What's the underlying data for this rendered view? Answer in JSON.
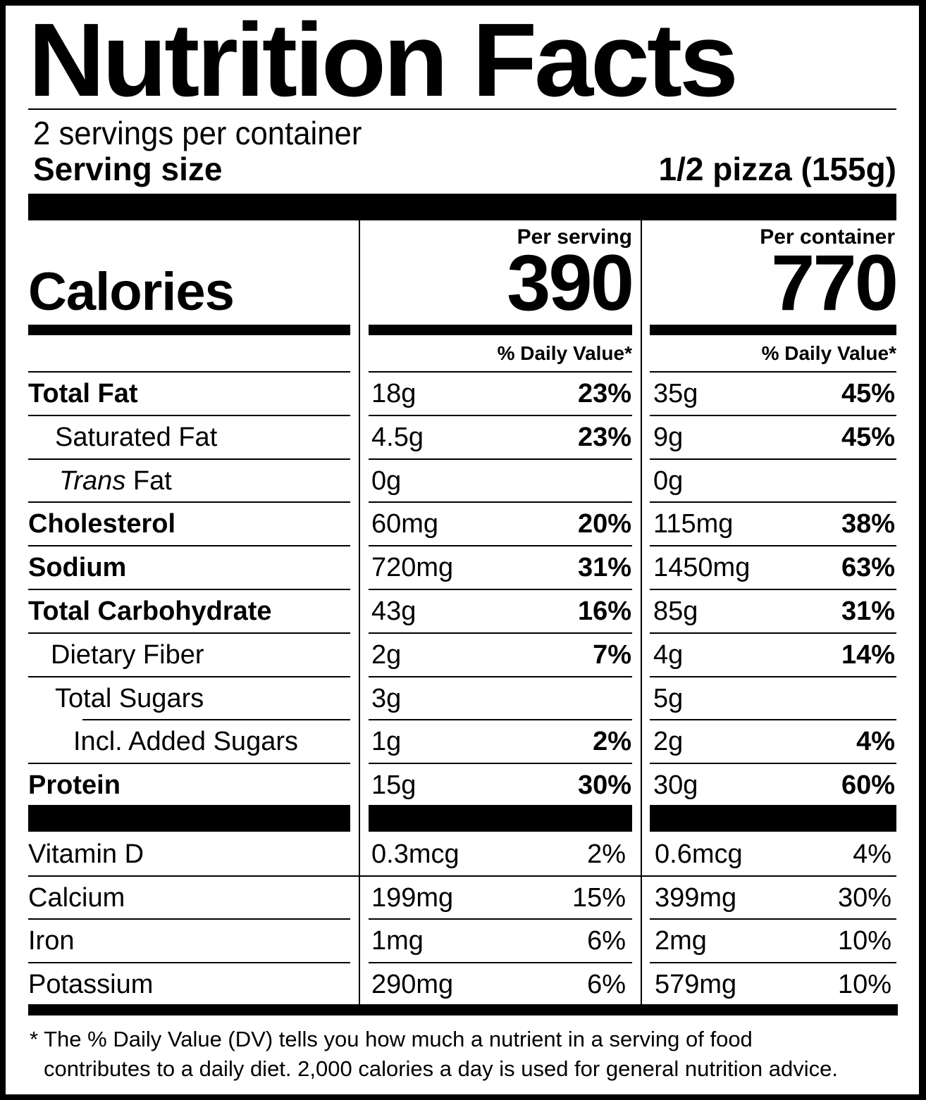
{
  "label": {
    "title": "Nutrition Facts",
    "servings_per_container": "2 servings per container",
    "serving_size_label": "Serving size",
    "serving_size_value": "1/2 pizza (155g)",
    "calories_label": "Calories",
    "columns": [
      {
        "header": "Per serving",
        "calories": "390",
        "dv_header": "% Daily Value*"
      },
      {
        "header": "Per container",
        "calories": "770",
        "dv_header": "% Daily Value*"
      }
    ],
    "nutrients": [
      {
        "name": "Total Fat",
        "bold": true,
        "indent": 0,
        "serving": {
          "amount": "18g",
          "dv": "23%"
        },
        "container": {
          "amount": "35g",
          "dv": "45%"
        }
      },
      {
        "name": "Saturated Fat",
        "bold": false,
        "indent": 1,
        "serving": {
          "amount": "4.5g",
          "dv": "23%"
        },
        "container": {
          "amount": "9g",
          "dv": "45%"
        }
      },
      {
        "name_italic": "Trans",
        "name": " Fat",
        "bold": false,
        "indent": 1,
        "serving": {
          "amount": "0g",
          "dv": ""
        },
        "container": {
          "amount": "0g",
          "dv": ""
        }
      },
      {
        "name": "Cholesterol",
        "bold": true,
        "indent": 0,
        "serving": {
          "amount": "60mg",
          "dv": "20%"
        },
        "container": {
          "amount": "115mg",
          "dv": "38%"
        }
      },
      {
        "name": "Sodium",
        "bold": true,
        "indent": 0,
        "serving": {
          "amount": "720mg",
          "dv": "31%"
        },
        "container": {
          "amount": "1450mg",
          "dv": "63%"
        }
      },
      {
        "name": "Total Carbohydrate",
        "bold": true,
        "indent": 0,
        "serving": {
          "amount": "43g",
          "dv": "16%"
        },
        "container": {
          "amount": "85g",
          "dv": "31%"
        }
      },
      {
        "name": "Dietary Fiber",
        "bold": false,
        "indent": 1,
        "serving": {
          "amount": "2g",
          "dv": "7%"
        },
        "container": {
          "amount": "4g",
          "dv": "14%"
        }
      },
      {
        "name": "Total Sugars",
        "bold": false,
        "indent": 1,
        "serving": {
          "amount": "3g",
          "dv": ""
        },
        "container": {
          "amount": "5g",
          "dv": ""
        }
      },
      {
        "name": "Incl. Added Sugars",
        "bold": false,
        "indent": 2,
        "serving": {
          "amount": "1g",
          "dv": "2%"
        },
        "container": {
          "amount": "2g",
          "dv": "4%"
        }
      },
      {
        "name": "Protein",
        "bold": true,
        "indent": 0,
        "serving": {
          "amount": "15g",
          "dv": "30%"
        },
        "container": {
          "amount": "30g",
          "dv": "60%"
        }
      }
    ],
    "vitamins": [
      {
        "name": "Vitamin D",
        "serving": {
          "amount": "0.3mcg",
          "dv": "2%"
        },
        "container": {
          "amount": "0.6mcg",
          "dv": "4%"
        }
      },
      {
        "name": "Calcium",
        "serving": {
          "amount": "199mg",
          "dv": "15%"
        },
        "container": {
          "amount": "399mg",
          "dv": "30%"
        }
      },
      {
        "name": "Iron",
        "serving": {
          "amount": "1mg",
          "dv": "6%"
        },
        "container": {
          "amount": "2mg",
          "dv": "10%"
        }
      },
      {
        "name": "Potassium",
        "serving": {
          "amount": "290mg",
          "dv": "6%"
        },
        "container": {
          "amount": "579mg",
          "dv": "10%"
        }
      }
    ],
    "footnote_line1": "* The % Daily Value (DV) tells you how much a nutrient in a serving of food",
    "footnote_line2": "contributes to a daily diet. 2,000 calories a day is used for general nutrition advice."
  }
}
